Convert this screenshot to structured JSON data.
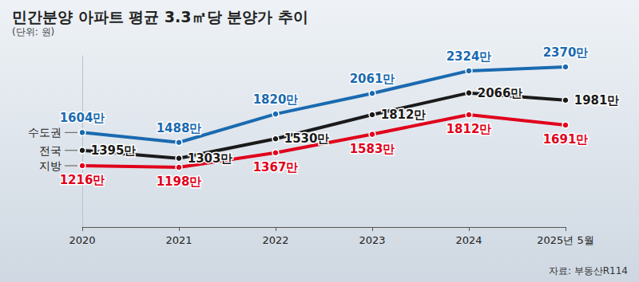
{
  "chart_data": {
    "type": "line",
    "title": "민간분양 아파트 평균 3.3㎡당 분양가 추이",
    "subtitle": "(단위: 원)",
    "annotations": [
      "자료: 부동산R114"
    ],
    "categories": [
      "2020",
      "2021",
      "2022",
      "2023",
      "2024",
      "2025년 5월"
    ],
    "series": [
      {
        "name": "수도권",
        "color": "#1a6ab0",
        "values": [
          16040000,
          14880000,
          18200000,
          20610000,
          23240000,
          23700000
        ],
        "value_labels": [
          "1604만",
          "1488만",
          "1820만",
          "2061만",
          "2324만",
          "2370만"
        ]
      },
      {
        "name": "전국",
        "color": "#1a1a1a",
        "values": [
          13950000,
          13030000,
          15300000,
          18120000,
          20660000,
          19810000
        ],
        "value_labels": [
          "1395만",
          "1303만",
          "1530만",
          "1812만",
          "2066만",
          "1981만"
        ]
      },
      {
        "name": "지방",
        "color": "#e0001b",
        "values": [
          12160000,
          11980000,
          13670000,
          15830000,
          18120000,
          16910000
        ],
        "value_labels": [
          "1216만",
          "1198만",
          "1367만",
          "1583만",
          "1812만",
          "1691만"
        ]
      }
    ],
    "ylim": [
      5000000,
      25000000
    ],
    "tick_labels": "x",
    "data_labels": true,
    "grid": false,
    "marker": "circle"
  }
}
